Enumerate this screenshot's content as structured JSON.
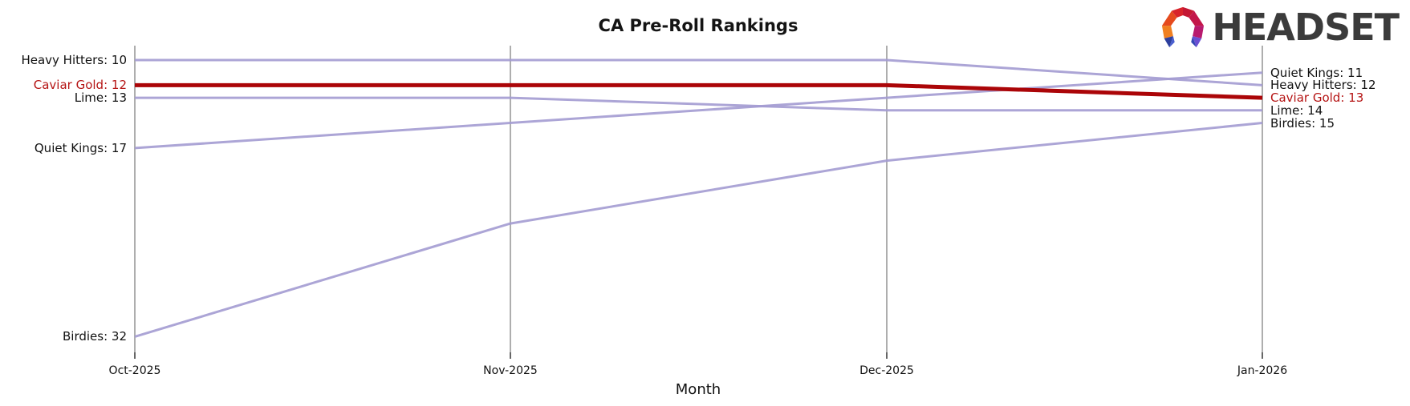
{
  "header": {
    "logo_text": "HEADSET"
  },
  "chart_data": {
    "type": "line",
    "subtype": "bump-ranking-chart",
    "title": "CA Pre-Roll Rankings",
    "xlabel": "Month",
    "ylabel": "Rank (lower number = better rank, drawn top-down, axis inverted)",
    "x_categories": [
      "Oct-2025",
      "Nov-2025",
      "Dec-2025",
      "Jan-2026"
    ],
    "grid": "vertical-gridlines-only",
    "legend_position": "none (direct labels at line endpoints)",
    "y_range_visible": [
      9,
      33
    ],
    "series": [
      {
        "name": "Heavy Hitters",
        "values": [
          10,
          10,
          10,
          12
        ],
        "left_label": "Heavy Hitters: 10",
        "right_label": "Heavy Hitters: 12",
        "color": "#a39bd2",
        "highlight": false
      },
      {
        "name": "Caviar Gold",
        "values": [
          12,
          12,
          12,
          13
        ],
        "left_label": "Caviar Gold: 12",
        "right_label": "Caviar Gold: 13",
        "color": "#ab0508",
        "highlight": true
      },
      {
        "name": "Lime",
        "values": [
          13,
          13,
          14,
          14
        ],
        "left_label": "Lime: 13",
        "right_label": "Lime: 14",
        "color": "#a39bd2",
        "highlight": false
      },
      {
        "name": "Quiet Kings",
        "values": [
          17,
          15,
          13,
          11
        ],
        "left_label": "Quiet Kings: 17",
        "right_label": "Quiet Kings: 11",
        "color": "#a39bd2",
        "highlight": false
      },
      {
        "name": "Birdies",
        "values": [
          32,
          23,
          18,
          15
        ],
        "left_label": "Birdies: 32",
        "right_label": "Birdies: 15",
        "color": "#a39bd2",
        "highlight": false
      }
    ],
    "colors": {
      "highlight_line": "#ab0508",
      "highlight_label": "#b51414",
      "normal_line": "#a39bd2",
      "gridline": "#aeaeae",
      "text": "#111111"
    }
  }
}
